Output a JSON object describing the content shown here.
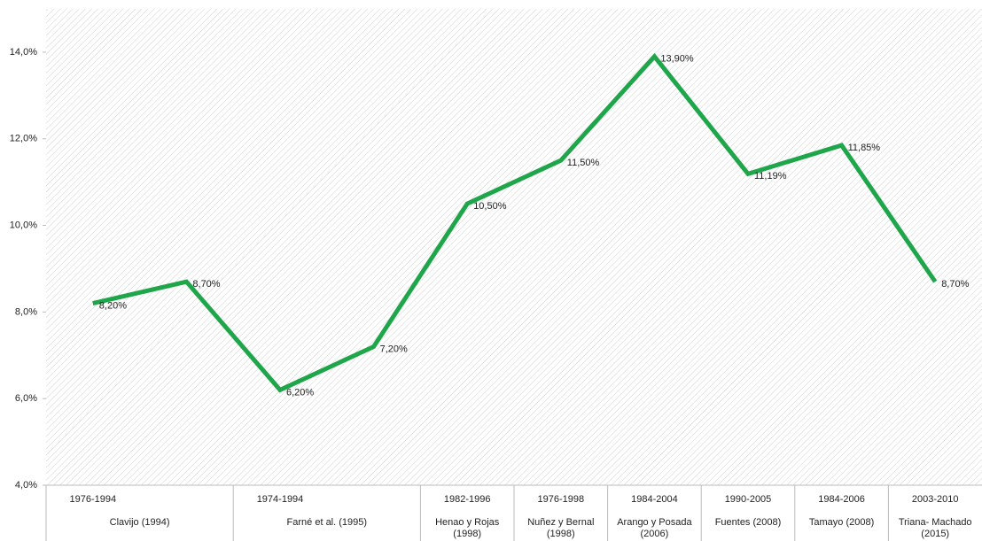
{
  "chart_data": {
    "type": "line",
    "categories": [
      "1976-1994",
      null,
      "1974-1994",
      null,
      "1982-1996",
      "1976-1998",
      "1984-2004",
      "1990-2005",
      "1984-2006",
      "2003-2010"
    ],
    "groups": [
      "Clavijo (1994)",
      null,
      "Farné et al. (1995)",
      null,
      "Henao y Rojas (1998)",
      "Nuñez y Bernal (1998)",
      "Arango y Posada (2006)",
      "Fuentes (2008)",
      "Tamayo (2008)",
      "Triana- Machado (2015)"
    ],
    "values": [
      8.2,
      8.7,
      6.2,
      7.2,
      10.5,
      11.5,
      13.9,
      11.19,
      11.85,
      8.7
    ],
    "value_labels": [
      "8,20%",
      "8,70%",
      "6,20%",
      "7,20%",
      "10,50%",
      "11,50%",
      "13,90%",
      "11,19%",
      "11,85%",
      "8,70%"
    ],
    "color": "#1fa64a",
    "ylim": [
      4,
      15
    ],
    "yticks": [
      {
        "value": 4,
        "label": "4,0%"
      },
      {
        "value": 6,
        "label": "6,0%"
      },
      {
        "value": 8,
        "label": "8,0%"
      },
      {
        "value": 10,
        "label": "10,0%"
      },
      {
        "value": 12,
        "label": "12,0%"
      },
      {
        "value": 14,
        "label": "14,0%"
      }
    ]
  }
}
